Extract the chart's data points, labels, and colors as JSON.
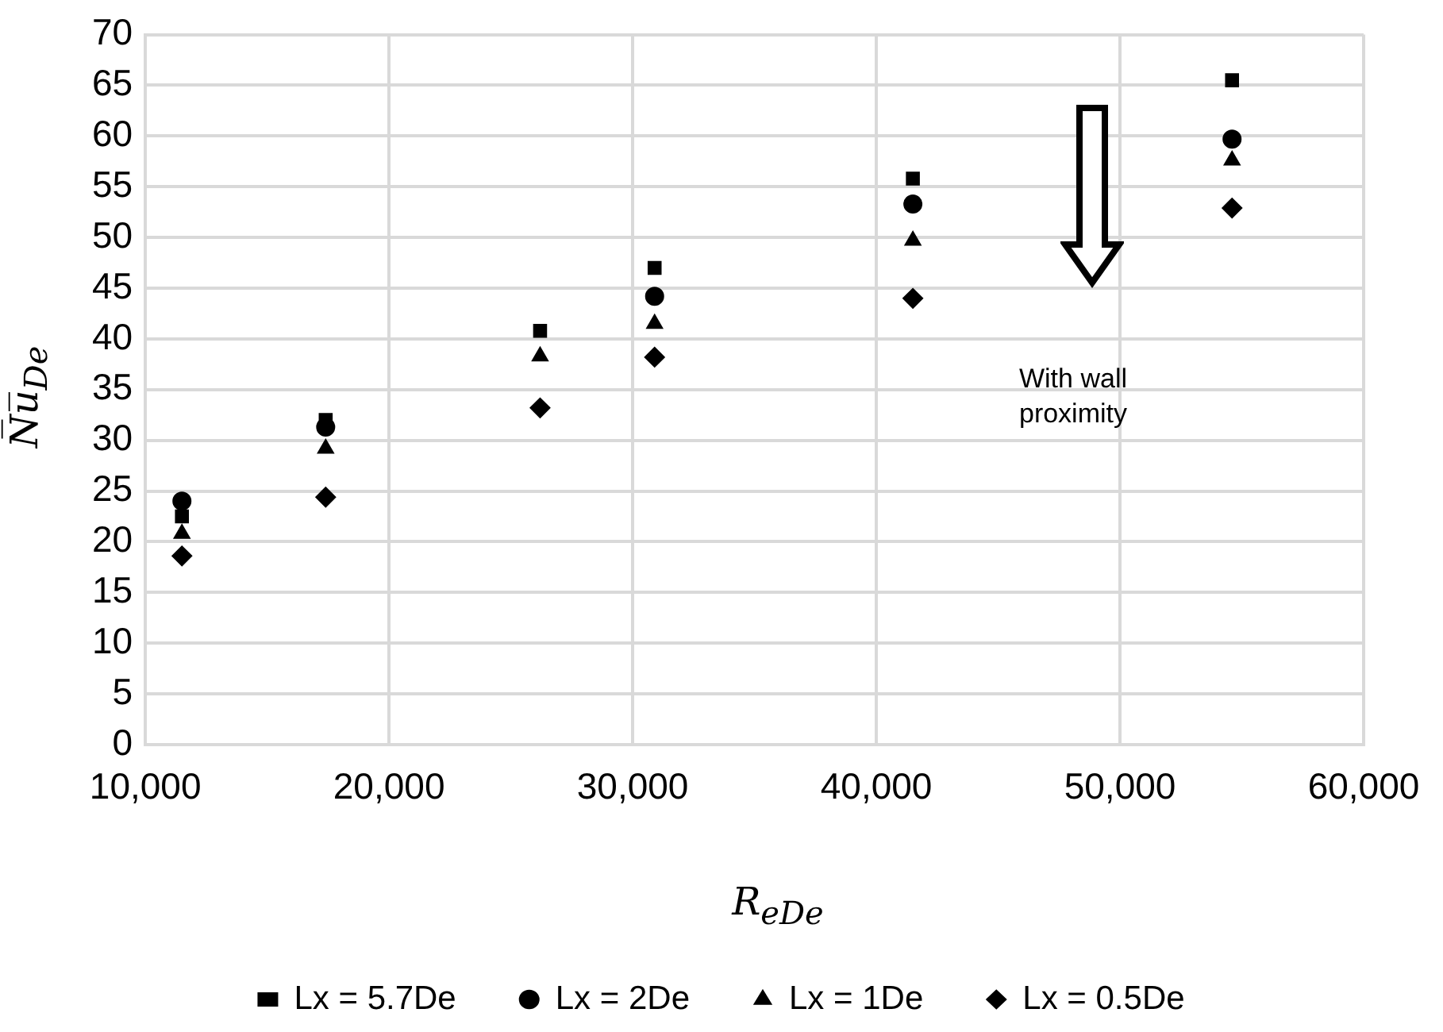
{
  "chart_data": {
    "type": "scatter",
    "xlabel": "R$_{eDe}$",
    "ylabel": "N̅u̅$_{De}$",
    "x": [
      11500,
      17400,
      26200,
      30900,
      41500,
      54600
    ],
    "series": [
      {
        "name": "Lx = 5.7De",
        "color": "#000000",
        "marker": "square",
        "values": [
          22.5,
          32,
          40.8,
          47,
          55.8,
          65.5
        ]
      },
      {
        "name": "Lx = 2De",
        "color": "#000000",
        "marker": "circle",
        "values": [
          24,
          31.3,
          null,
          44.2,
          53.3,
          59.7
        ]
      },
      {
        "name": "Lx = 1De",
        "color": "#000000",
        "marker": "triangle",
        "values": [
          20.8,
          29.2,
          38.3,
          41.5,
          49.7,
          57.6
        ]
      },
      {
        "name": "Lx = 0.5De",
        "color": "#000000",
        "marker": "diamond",
        "values": [
          18.6,
          24.4,
          33.2,
          38.2,
          44,
          52.9
        ]
      }
    ],
    "xlim": [
      10000,
      60000
    ],
    "xticks": [
      {
        "value": 10000,
        "label": "10,000"
      },
      {
        "value": 20000,
        "label": "20,000"
      },
      {
        "value": 30000,
        "label": "30,000"
      },
      {
        "value": 40000,
        "label": "40,000"
      },
      {
        "value": 50000,
        "label": "50,000"
      },
      {
        "value": 60000,
        "label": "60,000"
      }
    ],
    "ylim": [
      0,
      70
    ],
    "yticks": [
      0,
      5,
      10,
      15,
      20,
      25,
      30,
      35,
      40,
      45,
      50,
      55,
      60,
      65,
      70
    ],
    "grid": true,
    "legend": "bottom",
    "annotations": [
      "With wall proximity"
    ]
  }
}
